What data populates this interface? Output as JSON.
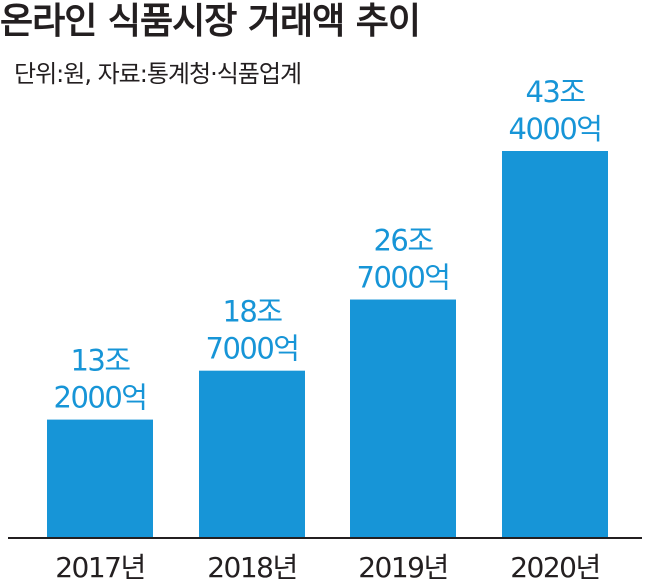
{
  "title": "온라인 식품시장 거래액 추이",
  "subtitle": "단위:원, 자료:통계청·식품업계",
  "colors": {
    "bar": "#1795d7",
    "value_label": "#1795d7",
    "text": "#231f20"
  },
  "chart_data": {
    "type": "bar",
    "title": "온라인 식품시장 거래액 추이",
    "subtitle": "단위:원, 자료:통계청·식품업계",
    "unit": "원",
    "categories": [
      "2017년",
      "2018년",
      "2019년",
      "2020년"
    ],
    "values": [
      132000,
      187000,
      267000,
      434000
    ],
    "value_unit": "억",
    "data_labels": [
      [
        "13조",
        "2000억"
      ],
      [
        "18조",
        "7000억"
      ],
      [
        "26조",
        "7000억"
      ],
      [
        "43조",
        "4000억"
      ]
    ],
    "ylim": [
      0,
      434000
    ],
    "grid": false,
    "legend": "none"
  }
}
